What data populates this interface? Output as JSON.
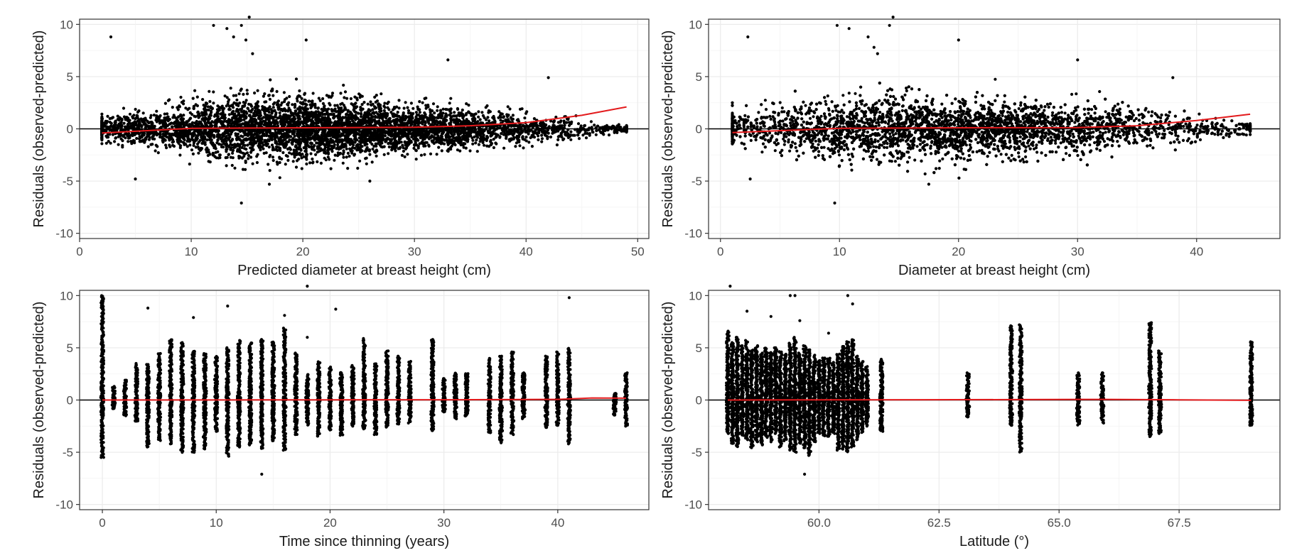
{
  "chart_data": [
    {
      "id": "panel-a",
      "type": "scatter",
      "title": "",
      "xlabel": "Predicted diameter at breast height (cm)",
      "ylabel": "Residuals (observed-predicted)",
      "xlim": [
        0,
        51
      ],
      "ylim": [
        -10.5,
        10.5
      ],
      "xticks": [
        0,
        10,
        20,
        30,
        40,
        50
      ],
      "xtick_labels": [
        "0",
        "10",
        "20",
        "30",
        "40",
        "50"
      ],
      "yticks": [
        -10,
        -5,
        0,
        5,
        10
      ],
      "ytick_labels": [
        "-10",
        "-5",
        "0",
        "5",
        "10"
      ],
      "grid": true,
      "reference_line": {
        "y": 0,
        "color": "#000000"
      },
      "point_color": "#000000",
      "trend_color": "#e31a1c",
      "point_cloud": {
        "x_range": [
          2,
          49
        ],
        "center": 0,
        "spread_by_x": [
          [
            2,
            1.0
          ],
          [
            8,
            2.0
          ],
          [
            15,
            2.9
          ],
          [
            22,
            2.7
          ],
          [
            30,
            2.2
          ],
          [
            38,
            1.6
          ],
          [
            45,
            0.8
          ],
          [
            49,
            0.3
          ]
        ]
      },
      "outliers": [
        [
          2.8,
          8.8
        ],
        [
          12,
          9.9
        ],
        [
          13.2,
          9.6
        ],
        [
          13.8,
          8.8
        ],
        [
          14.5,
          9.9
        ],
        [
          15.2,
          10.7
        ],
        [
          14.9,
          8.5
        ],
        [
          15.5,
          7.2
        ],
        [
          20.3,
          8.5
        ],
        [
          33,
          6.6
        ],
        [
          42,
          4.9
        ],
        [
          14.5,
          -7.1
        ],
        [
          5,
          -4.8
        ],
        [
          26,
          -5.0
        ],
        [
          17,
          -5.3
        ]
      ],
      "trend": {
        "x": [
          2,
          10,
          20,
          30,
          35,
          40,
          45,
          49
        ],
        "y": [
          -0.4,
          0.05,
          0.1,
          0.15,
          0.3,
          0.6,
          1.3,
          2.1
        ]
      }
    },
    {
      "id": "panel-b",
      "type": "scatter",
      "title": "",
      "xlabel": "Diameter at breast height (cm)",
      "ylabel": "Residuals (observed-predicted)",
      "xlim": [
        -1,
        47
      ],
      "ylim": [
        -10.5,
        10.5
      ],
      "xticks": [
        0,
        10,
        20,
        30,
        40
      ],
      "xtick_labels": [
        "0",
        "10",
        "20",
        "30",
        "40"
      ],
      "yticks": [
        -10,
        -5,
        0,
        5,
        10
      ],
      "ytick_labels": [
        "-10",
        "-5",
        "0",
        "5",
        "10"
      ],
      "grid": true,
      "reference_line": {
        "y": 0,
        "color": "#000000"
      },
      "point_color": "#000000",
      "trend_color": "#e31a1c",
      "point_cloud": {
        "x_range": [
          1,
          44.5
        ],
        "center": 0,
        "spread_by_x": [
          [
            1,
            1.4
          ],
          [
            8,
            2.7
          ],
          [
            15,
            3.0
          ],
          [
            22,
            2.7
          ],
          [
            30,
            2.3
          ],
          [
            38,
            1.7
          ],
          [
            42,
            1.0
          ],
          [
            44.5,
            0.5
          ]
        ]
      },
      "outliers": [
        [
          2.3,
          8.8
        ],
        [
          9.8,
          9.9
        ],
        [
          10.8,
          9.6
        ],
        [
          12.4,
          8.8
        ],
        [
          14.2,
          9.9
        ],
        [
          14.5,
          10.7
        ],
        [
          12.9,
          7.8
        ],
        [
          13.2,
          7.2
        ],
        [
          20,
          8.5
        ],
        [
          30,
          6.6
        ],
        [
          38,
          4.9
        ],
        [
          9.6,
          -7.1
        ],
        [
          2.5,
          -4.8
        ],
        [
          17.5,
          -5.3
        ]
      ],
      "trend": {
        "x": [
          1,
          10,
          20,
          30,
          35,
          40,
          44.5
        ],
        "y": [
          -0.35,
          0.05,
          0.1,
          0.12,
          0.3,
          0.8,
          1.4
        ]
      }
    },
    {
      "id": "panel-c",
      "type": "scatter",
      "title": "",
      "xlabel": "Time since thinning (years)",
      "ylabel": "Residuals (observed-predicted)",
      "xlim": [
        -2,
        48
      ],
      "ylim": [
        -10.5,
        10.5
      ],
      "xticks": [
        0,
        10,
        20,
        30,
        40
      ],
      "xtick_labels": [
        "0",
        "10",
        "20",
        "30",
        "40"
      ],
      "yticks": [
        -10,
        -5,
        0,
        5,
        10
      ],
      "ytick_labels": [
        "-10",
        "-5",
        "0",
        "5",
        "10"
      ],
      "grid": true,
      "reference_line": {
        "y": 0,
        "color": "#000000"
      },
      "point_color": "#000000",
      "trend_color": "#e31a1c",
      "columns": [
        [
          0,
          -5.5,
          10.0
        ],
        [
          1,
          -0.8,
          1.3
        ],
        [
          2,
          -1.5,
          1.9
        ],
        [
          3,
          -2.0,
          3.5
        ],
        [
          4,
          -4.5,
          3.4
        ],
        [
          5,
          -3.9,
          4.5
        ],
        [
          6,
          -4.2,
          5.8
        ],
        [
          7,
          -5.0,
          5.5
        ],
        [
          8,
          -5.0,
          4.7
        ],
        [
          9,
          -4.7,
          4.5
        ],
        [
          10,
          -3.0,
          4.2
        ],
        [
          11,
          -5.4,
          5.0
        ],
        [
          12,
          -4.5,
          5.7
        ],
        [
          13,
          -4.3,
          5.5
        ],
        [
          14,
          -4.7,
          5.8
        ],
        [
          15,
          -3.9,
          5.6
        ],
        [
          16,
          -4.8,
          6.9
        ],
        [
          17,
          -3.3,
          4.5
        ],
        [
          18,
          -2.4,
          2.5
        ],
        [
          19,
          -3.5,
          3.7
        ],
        [
          20,
          -2.9,
          3.2
        ],
        [
          21,
          -3.4,
          2.6
        ],
        [
          22,
          -2.5,
          3.3
        ],
        [
          23,
          -2.8,
          5.9
        ],
        [
          24,
          -3.3,
          3.5
        ],
        [
          25,
          -2.6,
          4.7
        ],
        [
          26,
          -2.3,
          4.2
        ],
        [
          27,
          -2.2,
          3.7
        ],
        [
          29,
          -2.9,
          5.8
        ],
        [
          30,
          -1.2,
          2.1
        ],
        [
          31,
          -1.8,
          2.6
        ],
        [
          32,
          -1.5,
          2.6
        ],
        [
          34,
          -3.1,
          4.0
        ],
        [
          35,
          -4.1,
          4.2
        ],
        [
          36,
          -3.3,
          4.6
        ],
        [
          37,
          -1.8,
          2.6
        ],
        [
          39,
          -2.6,
          4.2
        ],
        [
          40,
          -2.4,
          4.6
        ],
        [
          41,
          -4.2,
          5.0
        ],
        [
          45,
          -1.5,
          0.6
        ],
        [
          46,
          -2.5,
          2.6
        ]
      ],
      "outliers": [
        [
          4,
          8.8
        ],
        [
          8,
          7.9
        ],
        [
          11,
          9.0
        ],
        [
          16,
          8.1
        ],
        [
          18,
          10.9
        ],
        [
          20.5,
          8.7
        ],
        [
          41,
          9.8
        ],
        [
          14,
          -7.1
        ],
        [
          18,
          6.0
        ]
      ],
      "trend": {
        "x": [
          0,
          10,
          20,
          30,
          40,
          43,
          46
        ],
        "y": [
          0,
          0.01,
          0.02,
          0.03,
          0.06,
          0.2,
          0.18
        ]
      }
    },
    {
      "id": "panel-d",
      "type": "scatter",
      "title": "",
      "xlabel": "Latitude (°)",
      "ylabel": "Residuals (observed-predicted)",
      "xlim": [
        57.7,
        69.6
      ],
      "ylim": [
        -10.5,
        10.5
      ],
      "xticks": [
        60.0,
        62.5,
        65.0,
        67.5
      ],
      "xtick_labels": [
        "60.0",
        "62.5",
        "65.0",
        "67.5"
      ],
      "yticks": [
        -10,
        -5,
        0,
        5,
        10
      ],
      "ytick_labels": [
        "-10",
        "-5",
        "0",
        "5",
        "10"
      ],
      "grid": true,
      "reference_line": {
        "y": 0,
        "color": "#000000"
      },
      "point_color": "#000000",
      "trend_color": "#e31a1c",
      "columns": [
        [
          58.1,
          -3.2,
          6.6
        ],
        [
          58.2,
          -4.2,
          5.5
        ],
        [
          58.3,
          -4.5,
          6.0
        ],
        [
          58.4,
          -3.4,
          5.2
        ],
        [
          58.5,
          -3.8,
          5.7
        ],
        [
          58.6,
          -4.6,
          4.8
        ],
        [
          58.7,
          -4.0,
          5.2
        ],
        [
          58.8,
          -4.3,
          4.5
        ],
        [
          58.9,
          -3.6,
          5.0
        ],
        [
          59.0,
          -4.0,
          4.6
        ],
        [
          59.1,
          -3.2,
          5.0
        ],
        [
          59.2,
          -4.5,
          4.7
        ],
        [
          59.3,
          -3.9,
          4.4
        ],
        [
          59.4,
          -4.8,
          5.5
        ],
        [
          59.5,
          -5.0,
          6.0
        ],
        [
          59.6,
          -4.2,
          4.5
        ],
        [
          59.7,
          -4.6,
          5.2
        ],
        [
          59.8,
          -5.3,
          4.8
        ],
        [
          59.9,
          -4.0,
          4.3
        ],
        [
          60.0,
          -3.2,
          3.8
        ],
        [
          60.1,
          -3.4,
          4.1
        ],
        [
          60.2,
          -3.5,
          4.0
        ],
        [
          60.3,
          -3.2,
          3.6
        ],
        [
          60.4,
          -4.8,
          4.4
        ],
        [
          60.5,
          -4.7,
          5.2
        ],
        [
          60.6,
          -5.0,
          5.6
        ],
        [
          60.7,
          -4.5,
          5.8
        ],
        [
          60.8,
          -3.8,
          4.2
        ],
        [
          60.9,
          -3.1,
          3.7
        ],
        [
          61.0,
          -2.5,
          3.2
        ],
        [
          61.3,
          -3.0,
          3.9
        ],
        [
          63.1,
          -1.6,
          2.6
        ],
        [
          64.0,
          -2.4,
          7.1
        ],
        [
          64.2,
          -5.0,
          7.2
        ],
        [
          65.4,
          -2.4,
          2.6
        ],
        [
          65.9,
          -2.2,
          2.6
        ],
        [
          66.9,
          -3.5,
          7.4
        ],
        [
          67.1,
          -3.2,
          4.7
        ],
        [
          69.0,
          -2.4,
          5.6
        ]
      ],
      "outliers": [
        [
          58.15,
          10.9
        ],
        [
          58.5,
          8.5
        ],
        [
          59.4,
          10.0
        ],
        [
          59.5,
          10.0
        ],
        [
          59.0,
          8.0
        ],
        [
          59.6,
          7.6
        ],
        [
          60.6,
          10.0
        ],
        [
          60.7,
          9.2
        ],
        [
          60.2,
          6.4
        ],
        [
          59.7,
          -7.1
        ]
      ],
      "trend": {
        "x": [
          58.1,
          60,
          62,
          64,
          66,
          67.5,
          69
        ],
        "y": [
          0,
          0.02,
          0.03,
          0.04,
          0.06,
          0.02,
          -0.03
        ]
      }
    }
  ]
}
